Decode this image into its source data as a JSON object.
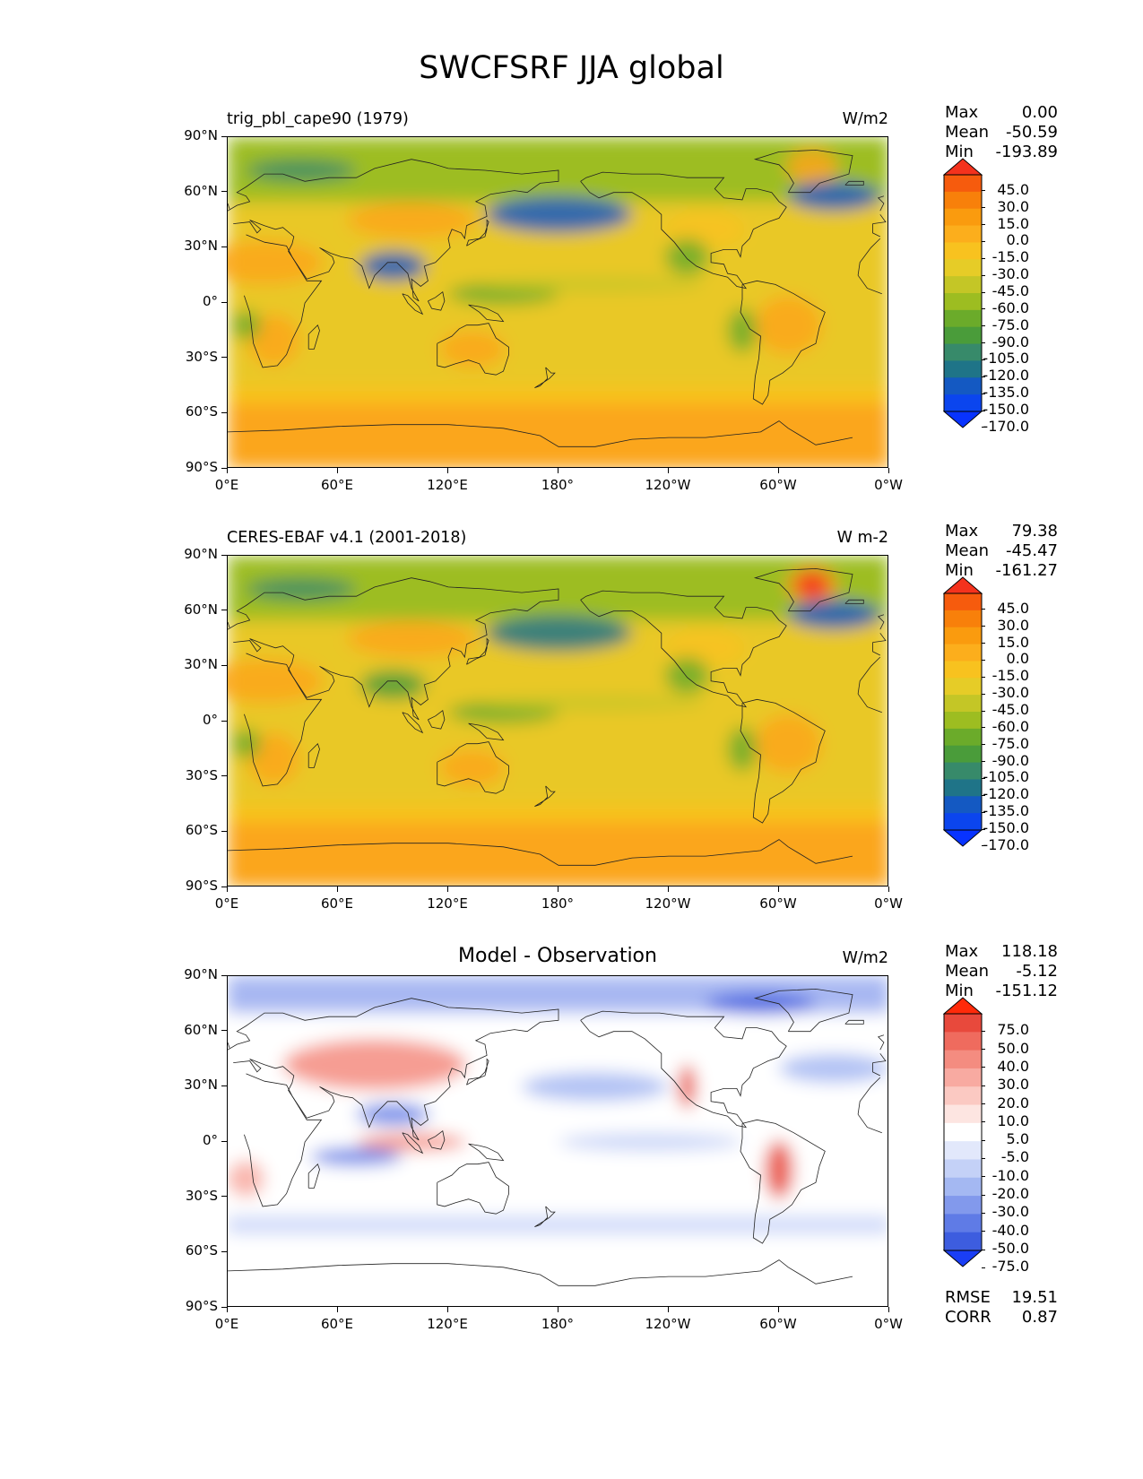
{
  "title": "SWCFSRF JJA global",
  "x_ticks": [
    "0°E",
    "60°E",
    "120°E",
    "180°",
    "120°W",
    "60°W",
    "0°W"
  ],
  "y_ticks": [
    "90°N",
    "60°N",
    "30°N",
    "0°",
    "30°S",
    "60°S",
    "90°S"
  ],
  "panels": [
    {
      "left_title": "trig_pbl_cape90 (1979)",
      "center_title": "",
      "units": "W/m2",
      "stats": [
        {
          "label": "Max",
          "value": "0.00"
        },
        {
          "label": "Mean",
          "value": "-50.59"
        },
        {
          "label": "Min",
          "value": "-193.89"
        }
      ],
      "colorbar_labels": [
        "45.0",
        "30.0",
        "15.0",
        "0.0",
        "-15.0",
        "-30.0",
        "-45.0",
        "-60.0",
        "-75.0",
        "-90.0",
        "-105.0",
        "-120.0",
        "-135.0",
        "-150.0",
        "-170.0"
      ],
      "colorbar_colors": [
        "#f4321d",
        "#f65b0d",
        "#f8800a",
        "#fa9b0e",
        "#fcae1c",
        "#f8c21f",
        "#e6cc27",
        "#c4c626",
        "#9dbd21",
        "#6bab2a",
        "#4a9c3a",
        "#378a6a",
        "#1f7488",
        "#1459c2",
        "#0b45ee",
        "#0833ff"
      ]
    },
    {
      "left_title": "CERES-EBAF v4.1 (2001-2018)",
      "center_title": "",
      "units": "W m-2",
      "stats": [
        {
          "label": "Max",
          "value": "79.38"
        },
        {
          "label": "Mean",
          "value": "-45.47"
        },
        {
          "label": "Min",
          "value": "-161.27"
        }
      ],
      "colorbar_labels": [
        "45.0",
        "30.0",
        "15.0",
        "0.0",
        "-15.0",
        "-30.0",
        "-45.0",
        "-60.0",
        "-75.0",
        "-90.0",
        "-105.0",
        "-120.0",
        "-135.0",
        "-150.0",
        "-170.0"
      ],
      "colorbar_colors": [
        "#f4321d",
        "#f65b0d",
        "#f8800a",
        "#fa9b0e",
        "#fcae1c",
        "#f8c21f",
        "#e6cc27",
        "#c4c626",
        "#9dbd21",
        "#6bab2a",
        "#4a9c3a",
        "#378a6a",
        "#1f7488",
        "#1459c2",
        "#0b45ee",
        "#0833ff"
      ]
    },
    {
      "left_title": "",
      "center_title": "Model - Observation",
      "units": "W/m2",
      "stats": [
        {
          "label": "Max",
          "value": "118.18"
        },
        {
          "label": "Mean",
          "value": "-5.12"
        },
        {
          "label": "Min",
          "value": "-151.12"
        }
      ],
      "extra_stats": [
        {
          "label": "RMSE",
          "value": "19.51"
        },
        {
          "label": "CORR",
          "value": "0.87"
        }
      ],
      "colorbar_labels": [
        "75.0",
        "50.0",
        "40.0",
        "30.0",
        "20.0",
        "10.0",
        "5.0",
        "-5.0",
        "-10.0",
        "-20.0",
        "-30.0",
        "-40.0",
        "-50.0",
        "-75.0"
      ],
      "colorbar_colors": [
        "#ff2a0a",
        "#e8493c",
        "#ef6b5e",
        "#f48c80",
        "#f8aaa1",
        "#fbc9c2",
        "#fde5e1",
        "#ffffff",
        "#e2e8fb",
        "#c4d1f7",
        "#a4b8f2",
        "#8299ec",
        "#5f7be6",
        "#3d5ddf",
        "#1a3ef5"
      ]
    }
  ],
  "chart_data": [
    {
      "type": "heatmap",
      "title": "trig_pbl_cape90 (1979)",
      "units": "W/m2",
      "x_range": [
        "0°E",
        "0°W"
      ],
      "y_range": [
        "90°S",
        "90°N"
      ],
      "stats": {
        "Max": 0.0,
        "Mean": -50.59,
        "Min": -193.89
      },
      "levels": [
        -170,
        -150,
        -135,
        -120,
        -105,
        -90,
        -75,
        -60,
        -45,
        -30,
        -15,
        0,
        15,
        30,
        45
      ],
      "colorbar_extend": "both"
    },
    {
      "type": "heatmap",
      "title": "CERES-EBAF v4.1 (2001-2018)",
      "units": "W m-2",
      "x_range": [
        "0°E",
        "0°W"
      ],
      "y_range": [
        "90°S",
        "90°N"
      ],
      "stats": {
        "Max": 79.38,
        "Mean": -45.47,
        "Min": -161.27
      },
      "levels": [
        -170,
        -150,
        -135,
        -120,
        -105,
        -90,
        -75,
        -60,
        -45,
        -30,
        -15,
        0,
        15,
        30,
        45
      ],
      "colorbar_extend": "both"
    },
    {
      "type": "heatmap",
      "title": "Model - Observation",
      "units": "W/m2",
      "x_range": [
        "0°E",
        "0°W"
      ],
      "y_range": [
        "90°S",
        "90°N"
      ],
      "stats": {
        "Max": 118.18,
        "Mean": -5.12,
        "Min": -151.12,
        "RMSE": 19.51,
        "CORR": 0.87
      },
      "levels": [
        -75,
        -50,
        -40,
        -30,
        -20,
        -10,
        -5,
        5,
        10,
        20,
        30,
        40,
        50,
        75
      ],
      "colorbar_extend": "both"
    }
  ]
}
